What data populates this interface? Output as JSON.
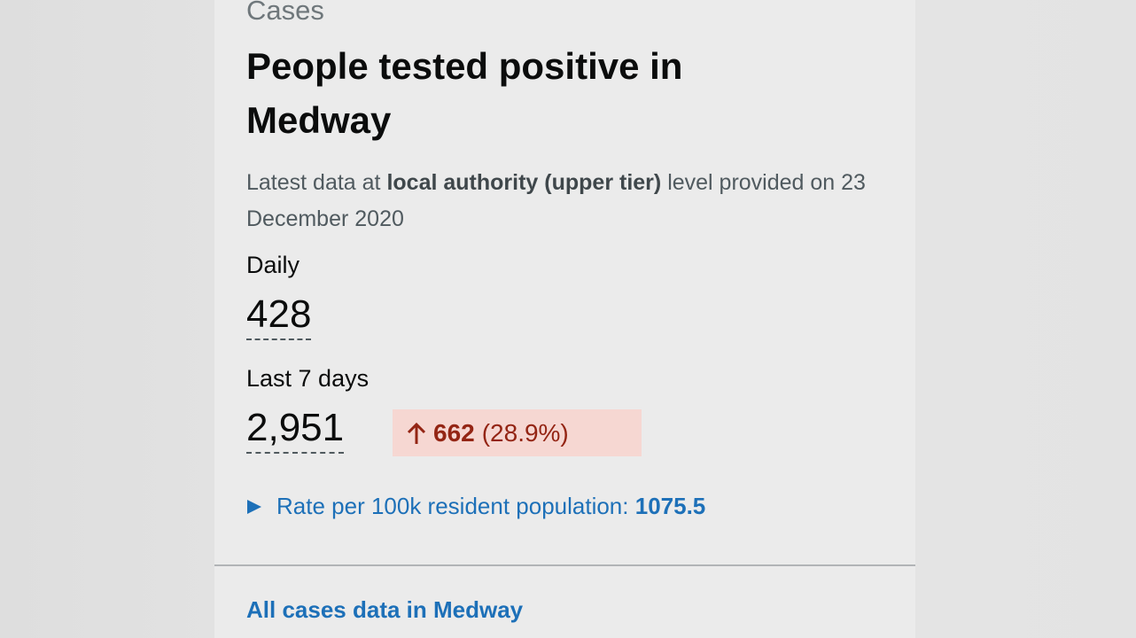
{
  "card": {
    "section": "Cases",
    "title": "People tested positive in Medway",
    "description": {
      "before": "Latest data at",
      "bold": "local authority (upper tier)",
      "after": "level provided on 23 December 2020"
    },
    "daily": {
      "label": "Daily",
      "value": "428"
    },
    "last7": {
      "label": "Last 7 days",
      "value": "2,951",
      "change": "662",
      "change_percent": "(28.9%)"
    },
    "rate": {
      "label": "Rate per 100k resident population:",
      "value": "1075.5"
    },
    "link": "All cases data in Medway"
  }
}
